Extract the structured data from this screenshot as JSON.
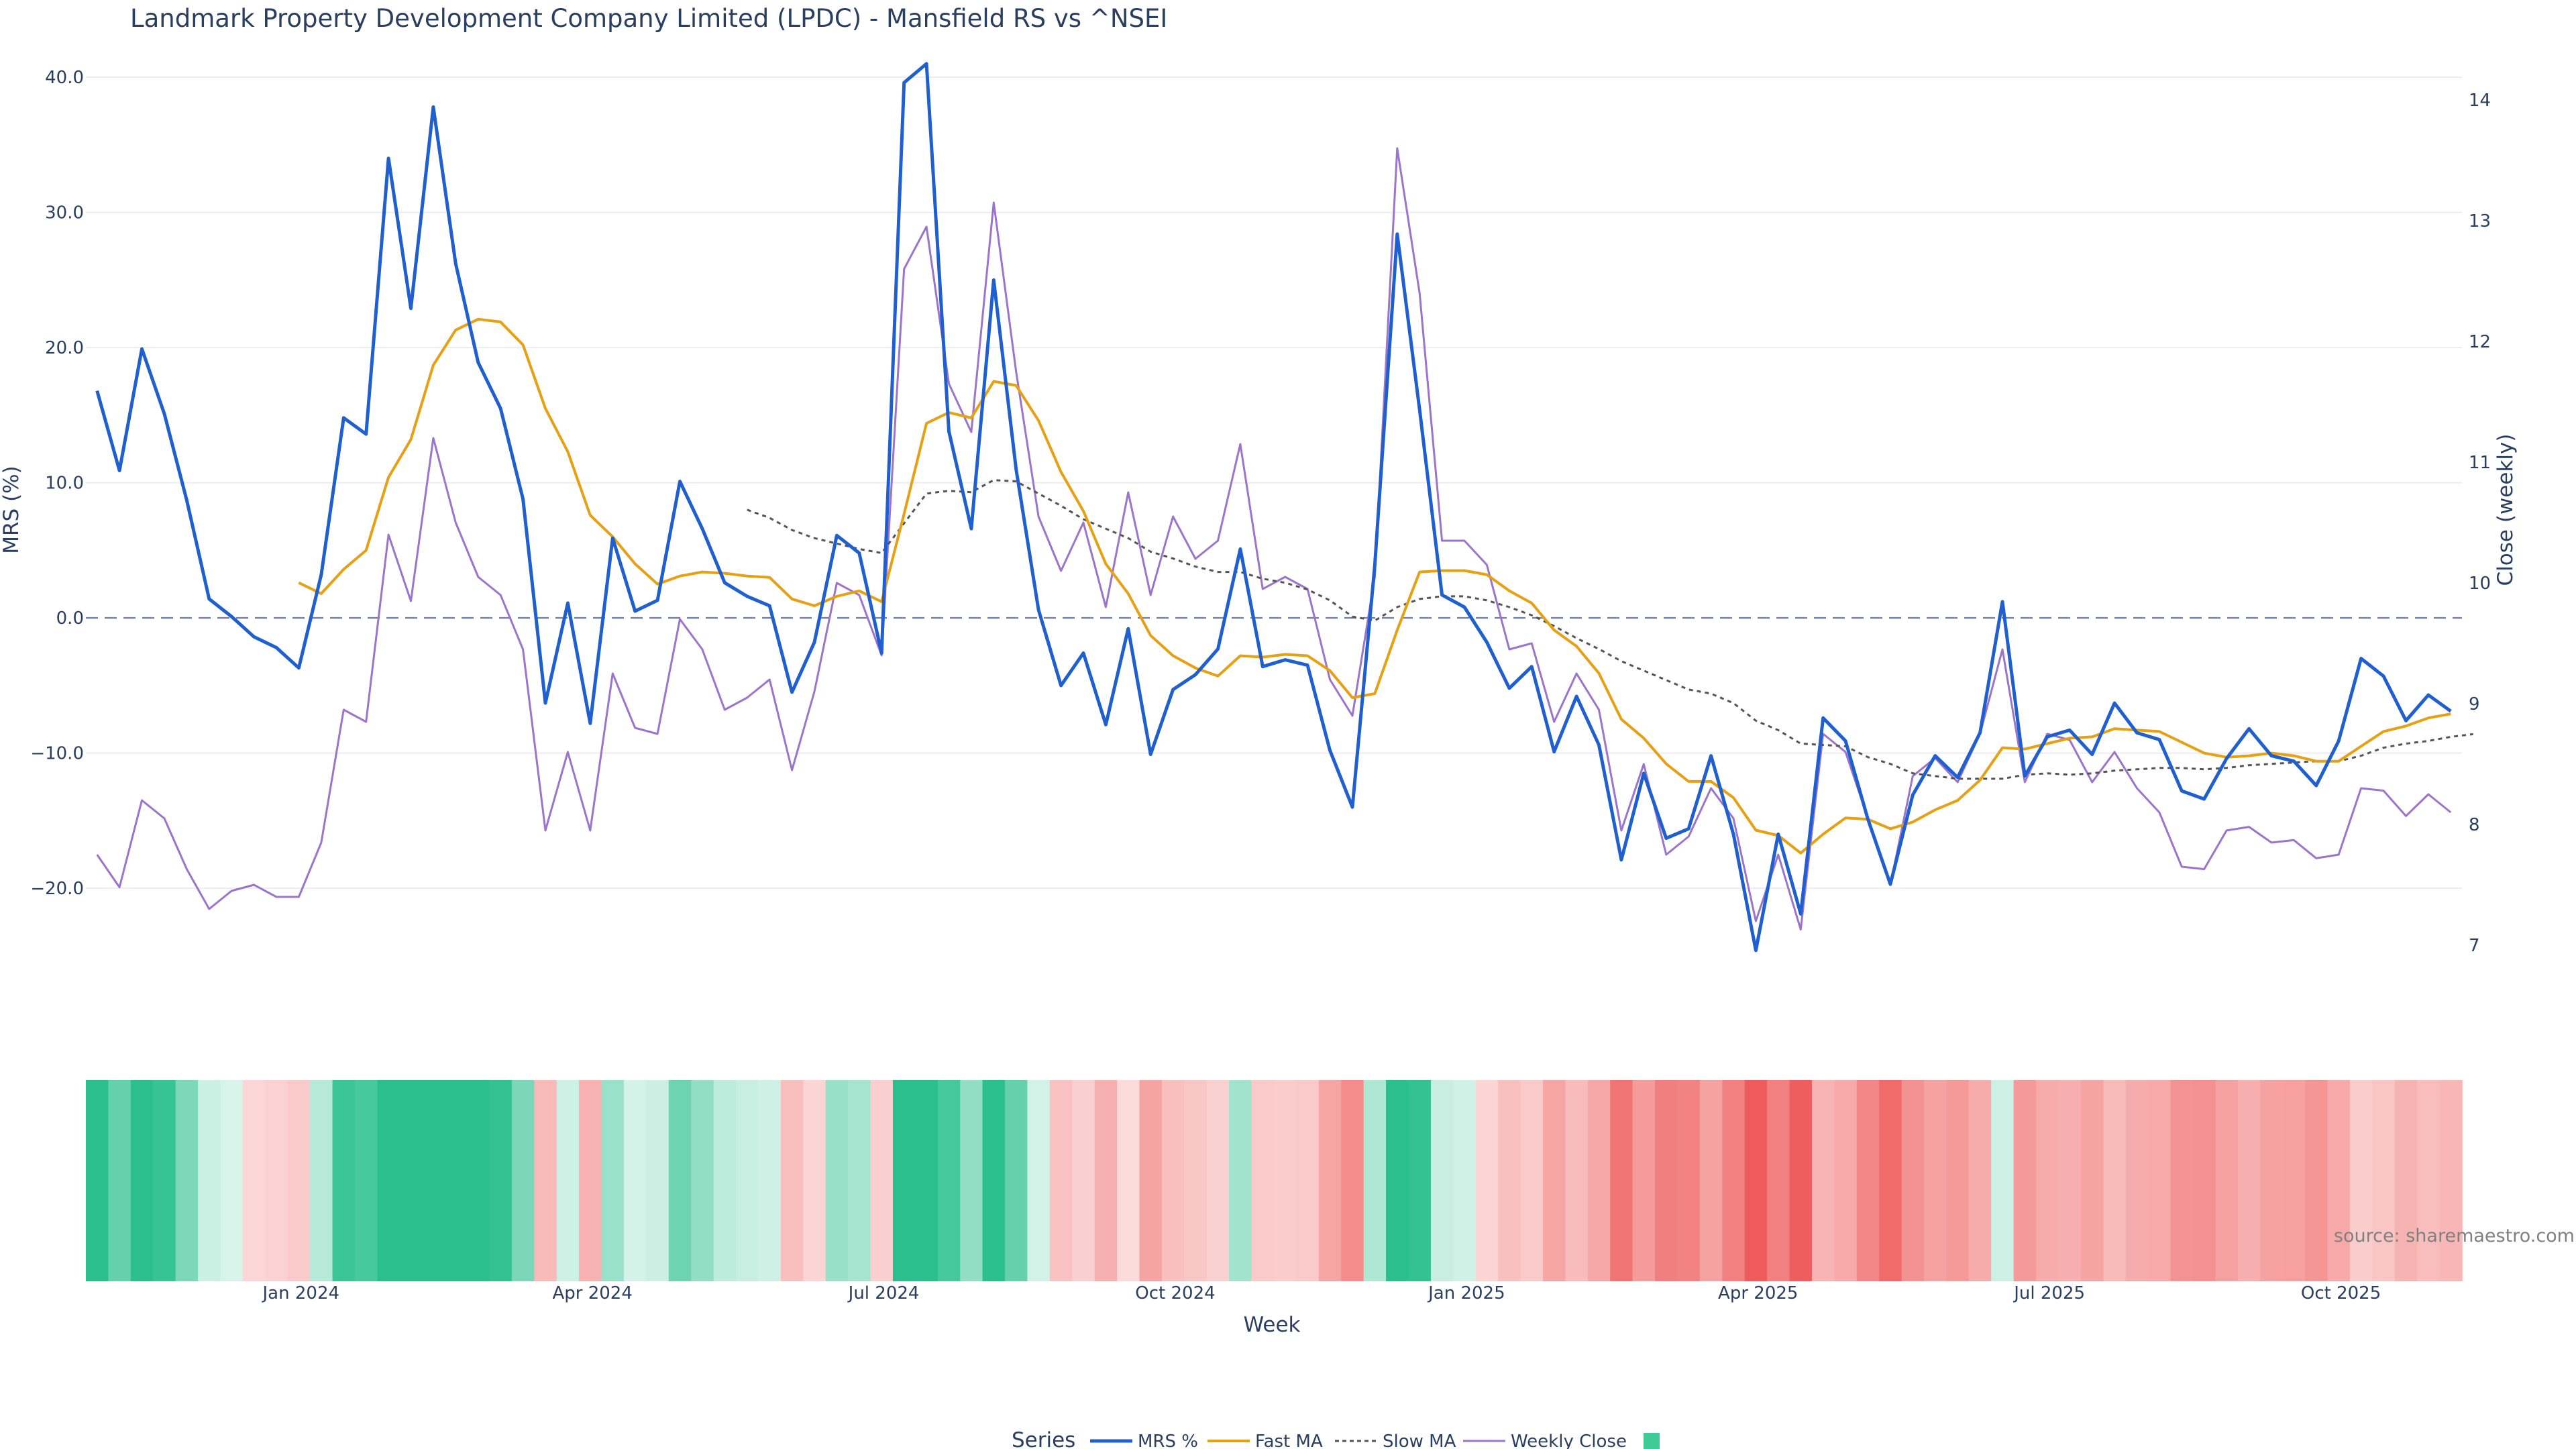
{
  "chart_data": {
    "type": "line",
    "title": "Landmark Property Development Company Limited (LPDC) - Mansfield RS vs ^NSEI",
    "xlabel": "Week",
    "ylabel": "MRS (%)",
    "y2label": "Close (weekly)",
    "ylim": [
      -26,
      41
    ],
    "y2lim": [
      6.8,
      14.3
    ],
    "yticks": [
      "40.0",
      "30.0",
      "20.0",
      "10.0",
      "0.0",
      "−10.0",
      "−20.0"
    ],
    "ytick_values": [
      40,
      30,
      20,
      10,
      0,
      -10,
      -20
    ],
    "y2ticks": [
      "14",
      "13",
      "12",
      "11",
      "10",
      "9",
      "8",
      "7"
    ],
    "y2tick_values": [
      14,
      13,
      12,
      11,
      10,
      9,
      8,
      7
    ],
    "xticks": [
      "Jan 2024",
      "Apr 2024",
      "Jul 2024",
      "Oct 2024",
      "Jan 2025",
      "Apr 2025",
      "Jul 2025",
      "Oct 2025"
    ],
    "xtick_weeks": [
      9.6,
      22.6,
      35.6,
      48.6,
      61.6,
      74.6,
      87.6,
      100.6
    ],
    "zero_line": 0,
    "series": [
      {
        "name": "MRS %",
        "axis": "y",
        "color": "#1f5fcf",
        "values": [
          16.8,
          10.9,
          19.9,
          15.1,
          8.7,
          1.4,
          0.1,
          -1.4,
          -2.2,
          -3.7,
          3.2,
          14.8,
          13.6,
          34.0,
          22.9,
          37.8,
          26.2,
          18.9,
          15.5,
          8.8,
          -6.3,
          1.1,
          -7.8,
          5.9,
          0.5,
          1.3,
          10.1,
          6.6,
          2.6,
          1.6,
          0.9,
          -5.5,
          -1.8,
          6.1,
          4.8,
          -2.6,
          39.6,
          41.0,
          13.8,
          6.6,
          25.0,
          11.0,
          0.6,
          -5.0,
          -2.6,
          -7.9,
          -0.8,
          -10.1,
          -5.3,
          -4.2,
          -2.3,
          5.1,
          -3.6,
          -3.1,
          -3.5,
          -9.8,
          -14.0,
          3.9,
          28.4,
          15.4,
          1.7,
          0.8,
          -1.8,
          -5.2,
          -3.6,
          -9.9,
          -5.8,
          -9.4,
          -17.9,
          -11.5,
          -16.3,
          -15.6,
          -10.2,
          -16.0,
          -24.6,
          -16.0,
          -21.9,
          -7.4,
          -9.1,
          -14.9,
          -19.7,
          -13.1,
          -10.2,
          -11.8,
          -8.5,
          1.2,
          -11.7,
          -8.8,
          -8.3,
          -10.1,
          -6.3,
          -8.5,
          -9.0,
          -12.8,
          -13.4,
          -10.4,
          -8.2,
          -10.2,
          -10.6,
          -12.4,
          -9.1,
          -3.0,
          -4.3,
          -7.6,
          -5.7,
          -6.9
        ]
      },
      {
        "name": "Fast MA",
        "axis": "y",
        "color": "#e6a012",
        "values": [
          null,
          null,
          null,
          null,
          null,
          null,
          null,
          null,
          null,
          2.6,
          1.8,
          3.6,
          5.0,
          10.4,
          13.2,
          18.7,
          21.3,
          22.1,
          21.9,
          20.2,
          15.5,
          12.3,
          7.6,
          6.0,
          4.0,
          2.5,
          3.1,
          3.4,
          3.3,
          3.1,
          3.0,
          1.4,
          0.9,
          1.6,
          2.0,
          1.2,
          7.7,
          14.4,
          15.2,
          14.8,
          17.5,
          17.2,
          14.6,
          10.8,
          7.9,
          4.0,
          1.8,
          -1.3,
          -2.8,
          -3.7,
          -4.3,
          -2.8,
          -2.9,
          -2.7,
          -2.8,
          -3.9,
          -5.9,
          -5.6,
          -0.9,
          3.4,
          3.5,
          3.5,
          3.2,
          2.0,
          1.1,
          -0.9,
          -2.1,
          -4.1,
          -7.5,
          -8.9,
          -10.8,
          -12.1,
          -12.1,
          -13.3,
          -15.7,
          -16.1,
          -17.4,
          -16.0,
          -14.8,
          -14.9,
          -15.6,
          -15.1,
          -14.2,
          -13.5,
          -12.0,
          -9.6,
          -9.7,
          -9.3,
          -8.9,
          -8.8,
          -8.2,
          -8.3,
          -8.4,
          -9.2,
          -10.0,
          -10.3,
          -10.2,
          -10.0,
          -10.2,
          -10.6,
          -10.6,
          -9.5,
          -8.4,
          -8.0,
          -7.4,
          -7.1
        ]
      },
      {
        "name": "Slow MA",
        "axis": "y",
        "color": "#555555",
        "dash": true,
        "values": [
          null,
          null,
          null,
          null,
          null,
          null,
          null,
          null,
          null,
          null,
          null,
          null,
          null,
          null,
          null,
          null,
          null,
          null,
          null,
          null,
          null,
          null,
          null,
          null,
          null,
          null,
          null,
          null,
          null,
          8.0,
          7.4,
          6.5,
          5.9,
          5.5,
          5.1,
          4.8,
          7.0,
          9.2,
          9.4,
          9.3,
          10.2,
          10.1,
          9.2,
          8.3,
          7.3,
          6.6,
          5.9,
          4.9,
          4.4,
          3.8,
          3.4,
          3.4,
          2.9,
          2.6,
          2.1,
          1.3,
          0.1,
          -0.2,
          0.8,
          1.4,
          1.6,
          1.6,
          1.3,
          0.8,
          0.2,
          -0.6,
          -1.5,
          -2.3,
          -3.2,
          -3.9,
          -4.6,
          -5.3,
          -5.6,
          -6.3,
          -7.6,
          -8.3,
          -9.3,
          -9.4,
          -9.5,
          -10.3,
          -10.8,
          -11.5,
          -11.7,
          -11.9,
          -11.9,
          -11.9,
          -11.6,
          -11.5,
          -11.6,
          -11.5,
          -11.3,
          -11.2,
          -11.1,
          -11.1,
          -11.2,
          -11.1,
          -10.9,
          -10.8,
          -10.7,
          -10.6,
          -10.6,
          -10.2,
          -9.6,
          -9.3,
          -9.1,
          -8.8,
          -8.6
        ]
      },
      {
        "name": "Weekly Close",
        "axis": "y2",
        "color": "#9b74cc",
        "values": [
          7.75,
          7.48,
          8.2,
          8.05,
          7.63,
          7.3,
          7.45,
          7.5,
          7.4,
          7.4,
          7.85,
          8.95,
          8.85,
          10.4,
          9.85,
          11.2,
          10.5,
          10.05,
          9.9,
          9.45,
          7.95,
          8.6,
          7.95,
          9.25,
          8.8,
          8.75,
          9.7,
          9.45,
          8.95,
          9.05,
          9.2,
          8.45,
          9.1,
          10.0,
          9.9,
          9.4,
          12.6,
          12.95,
          11.65,
          11.25,
          13.15,
          11.75,
          10.55,
          10.1,
          10.5,
          9.8,
          10.75,
          9.9,
          10.55,
          10.2,
          10.35,
          11.15,
          9.95,
          10.05,
          9.95,
          9.2,
          8.9,
          10.05,
          13.6,
          12.4,
          10.35,
          10.35,
          10.15,
          9.45,
          9.5,
          8.85,
          9.25,
          8.95,
          7.95,
          8.5,
          7.75,
          7.9,
          8.3,
          8.05,
          7.2,
          7.75,
          7.13,
          8.75,
          8.6,
          8.05,
          7.5,
          8.4,
          8.55,
          8.35,
          8.75,
          9.45,
          8.35,
          8.75,
          8.7,
          8.35,
          8.6,
          8.3,
          8.1,
          7.65,
          7.63,
          7.95,
          7.98,
          7.85,
          7.87,
          7.72,
          7.75,
          8.3,
          8.28,
          8.07,
          8.25,
          8.1
        ]
      }
    ],
    "heatmap_strip": {
      "values": [
        16.8,
        10.9,
        19.9,
        15.1,
        8.7,
        1.4,
        0.1,
        -1.4,
        -2.2,
        -3.7,
        3.2,
        14.8,
        13.6,
        34.0,
        22.9,
        37.8,
        26.2,
        18.9,
        15.5,
        8.8,
        -6.3,
        1.1,
        -7.8,
        5.9,
        0.5,
        1.3,
        10.1,
        6.6,
        2.6,
        1.6,
        0.9,
        -5.5,
        -1.8,
        6.1,
        4.8,
        -2.6,
        39.6,
        41.0,
        13.8,
        6.6,
        25.0,
        11.0,
        0.6,
        -5.0,
        -2.6,
        -7.9,
        -0.8,
        -10.1,
        -5.3,
        -4.2,
        -2.3,
        5.1,
        -3.6,
        -3.1,
        -3.5,
        -9.8,
        -14.0,
        3.9,
        28.4,
        15.4,
        1.7,
        0.8,
        -1.8,
        -5.2,
        -3.6,
        -9.9,
        -5.8,
        -9.4,
        -17.9,
        -11.5,
        -16.3,
        -15.6,
        -10.2,
        -16.0,
        -24.6,
        -16.0,
        -21.9,
        -7.4,
        -9.1,
        -14.9,
        -19.7,
        -13.1,
        -10.2,
        -11.8,
        -8.5,
        1.2,
        -11.7,
        -8.8,
        -8.3,
        -10.1,
        -6.3,
        -8.5,
        -9.0,
        -12.8,
        -13.4,
        -10.4,
        -8.2,
        -10.2,
        -10.6,
        -12.4,
        -9.1,
        -3.0,
        -4.3,
        -7.6,
        -5.7,
        -6.9
      ],
      "positive_color": "#2abf8d",
      "negative_color": "#ef5b5b"
    },
    "legend": {
      "title": "Series",
      "entries": [
        "MRS %",
        "Fast MA",
        "Slow MA",
        "Weekly Close"
      ],
      "swatch_color": "#3ecb98"
    },
    "source": "source: sharemaestro.com",
    "grid": true
  }
}
